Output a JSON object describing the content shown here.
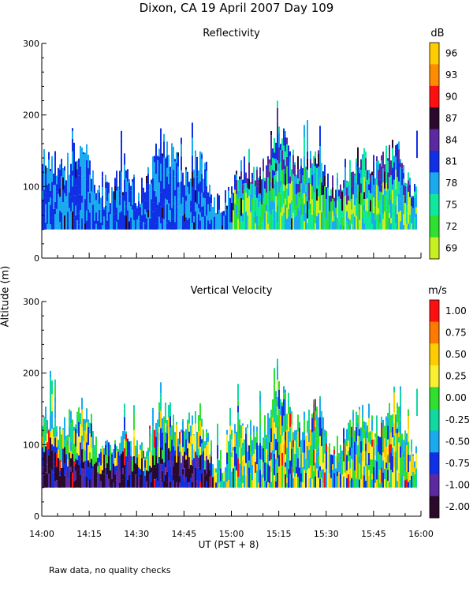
{
  "title": "Dixon, CA 19 April 2007  Day 109",
  "ylabel": "Altitude (m)",
  "xlabel": "UT  (PST + 8)",
  "note": "Raw data, no quality checks",
  "x_ticks": [
    "14:00",
    "14:15",
    "14:30",
    "14:45",
    "15:00",
    "15:15",
    "15:30",
    "15:45",
    "16:00"
  ],
  "chart_data": [
    {
      "type": "heatmap",
      "title": "Reflectivity",
      "units": "dB",
      "xlabel": "UT  (PST + 8)",
      "ylabel": "Altitude (m)",
      "x_range": [
        "14:00",
        "16:00"
      ],
      "ylim": [
        0,
        300
      ],
      "y_ticks": [
        0,
        100,
        200,
        300
      ],
      "colorbar": {
        "labels": [
          "96",
          "93",
          "90",
          "87",
          "84",
          "81",
          "78",
          "75",
          "72",
          "69"
        ],
        "colors": [
          "#ffcc00",
          "#ff8c00",
          "#ff1010",
          "#2a0a2a",
          "#5c2aa0",
          "#1030e6",
          "#1aaaf0",
          "#10e8a0",
          "#30e030",
          "#c8f020"
        ]
      },
      "echo_base_m": 40,
      "echo_top_range_m": [
        100,
        220
      ]
    },
    {
      "type": "heatmap",
      "title": "Vertical Velocity",
      "units": "m/s",
      "xlabel": "UT  (PST + 8)",
      "ylabel": "Altitude (m)",
      "x_range": [
        "14:00",
        "16:00"
      ],
      "ylim": [
        0,
        300
      ],
      "y_ticks": [
        0,
        100,
        200,
        300
      ],
      "colorbar": {
        "labels": [
          "1.00",
          "0.75",
          "0.50",
          "0.25",
          "0.00",
          "-0.25",
          "-0.50",
          "-0.75",
          "-1.00",
          "-2.00"
        ],
        "colors": [
          "#ff1010",
          "#ff7a00",
          "#ffcc00",
          "#f8f030",
          "#30e030",
          "#10d8a0",
          "#1aaaf0",
          "#1030e6",
          "#5c2aa0",
          "#2a0a2a"
        ]
      },
      "echo_base_m": 40,
      "echo_top_range_m": [
        100,
        220
      ]
    }
  ]
}
